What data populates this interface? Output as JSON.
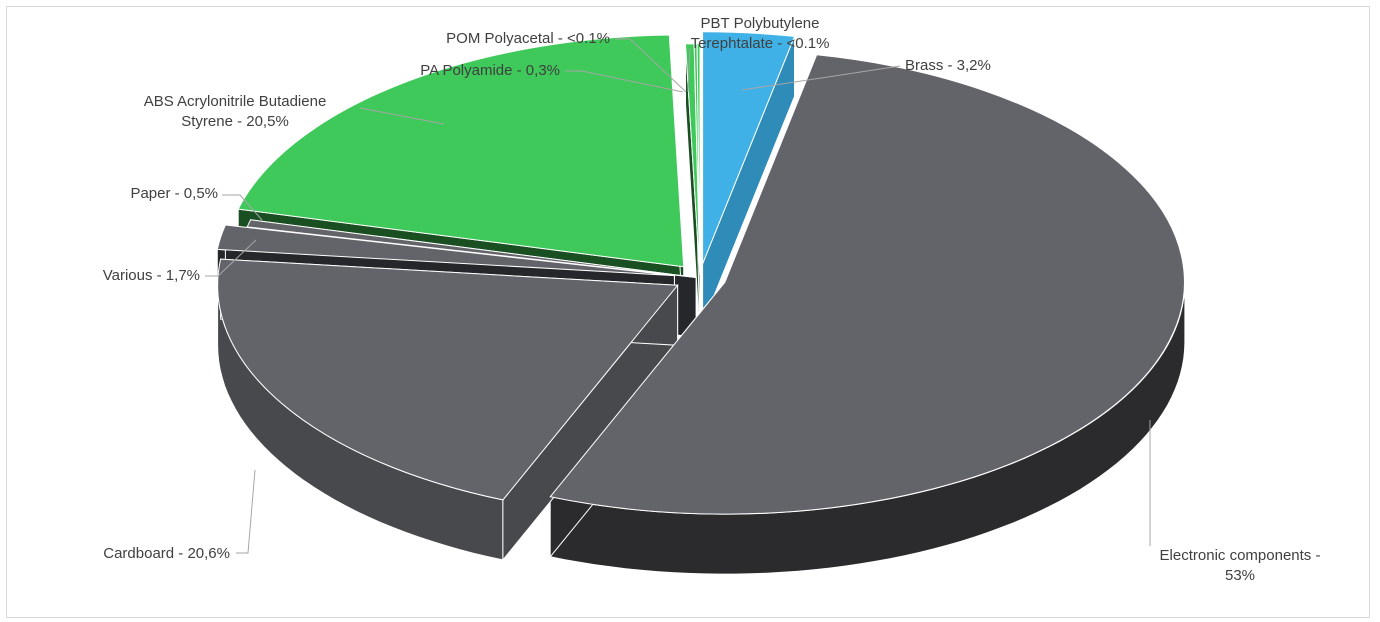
{
  "chart_data": {
    "type": "pie",
    "style": "3d-exploded",
    "legend": "none",
    "slices": [
      {
        "name": "Brass",
        "value": 3.2,
        "label_lines": [
          "Brass - 3,2%"
        ],
        "color": "#40b1e6",
        "side_color": "#2f8bb8"
      },
      {
        "name": "Electronic components",
        "value": 53,
        "label_lines": [
          "Electronic components -",
          "53%"
        ],
        "color": "#63646a",
        "side_color": "#2b2b2e"
      },
      {
        "name": "Cardboard",
        "value": 20.6,
        "label_lines": [
          "Cardboard - 20,6%"
        ],
        "color": "#63646a",
        "side_color": "#48494d"
      },
      {
        "name": "Various",
        "value": 1.7,
        "label_lines": [
          "Various - 1,7%"
        ],
        "color": "#63646a",
        "side_color": "#26272a"
      },
      {
        "name": "Paper",
        "value": 0.5,
        "label_lines": [
          "Paper - 0,5%"
        ],
        "color": "#63646a",
        "side_color": "#26272a"
      },
      {
        "name": "ABS Acrylonitrile Butadiene Styrene",
        "value": 20.5,
        "label_lines": [
          "ABS Acrylonitrile Butadiene",
          "Styrene - 20,5%"
        ],
        "color": "#3ec95a",
        "side_color": "#1a4f22"
      },
      {
        "name": "PA Polyamide",
        "value": 0.3,
        "label_lines": [
          "PA Polyamide - 0,3%"
        ],
        "color": "#3ec95a",
        "side_color": "#1a4f22"
      },
      {
        "name": "POM Polyacetal",
        "value": 0.1,
        "label_lines": [
          "POM Polyacetal - <0.1%"
        ],
        "color": "#3ec95a",
        "side_color": "#1a4f22"
      },
      {
        "name": "PBT Polybutylene Terephtalate",
        "value": 0.1,
        "label_lines": [
          "PBT Polybutylene",
          "Terephtalate - <0.1%"
        ],
        "color": "#3ec95a",
        "side_color": "#1a4f22"
      }
    ]
  }
}
